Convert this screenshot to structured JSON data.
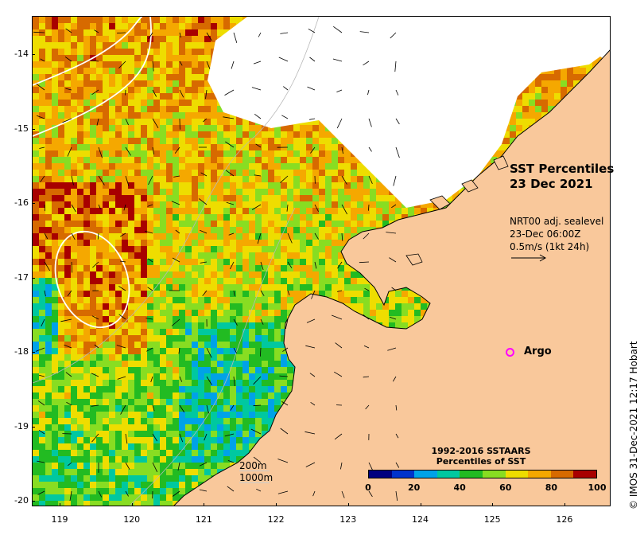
{
  "map": {
    "title_line1": "SST Percentiles",
    "title_line2": "23 Dec 2021",
    "current_line1": "NRT00 adj. sealevel",
    "current_line2": "23-Dec 06:00Z",
    "current_line3": "0.5m/s (1kt 24h)",
    "argo_label": "Argo",
    "contour_200": "200m",
    "contour_1000": "1000m",
    "credit": "© IMOS 31-Dec-2021 12:17 Hobart",
    "land_color": "#f9c89b",
    "lat_ticks": [
      "-14",
      "-15",
      "-16",
      "-17",
      "-18",
      "-19",
      "-20"
    ],
    "lon_ticks": [
      "119",
      "120",
      "121",
      "122",
      "123",
      "124",
      "125",
      "126"
    ]
  },
  "colorbar": {
    "title_line1": "1992-2016 SSTAARS",
    "title_line2": "Percentiles of SST",
    "labels": [
      "0",
      "20",
      "40",
      "60",
      "80",
      "100"
    ],
    "colors": [
      "#00007f",
      "#0033cc",
      "#00a2e8",
      "#00c8a0",
      "#22bb22",
      "#88dd22",
      "#eedd00",
      "#f5a800",
      "#d76a00",
      "#a80000"
    ]
  }
}
